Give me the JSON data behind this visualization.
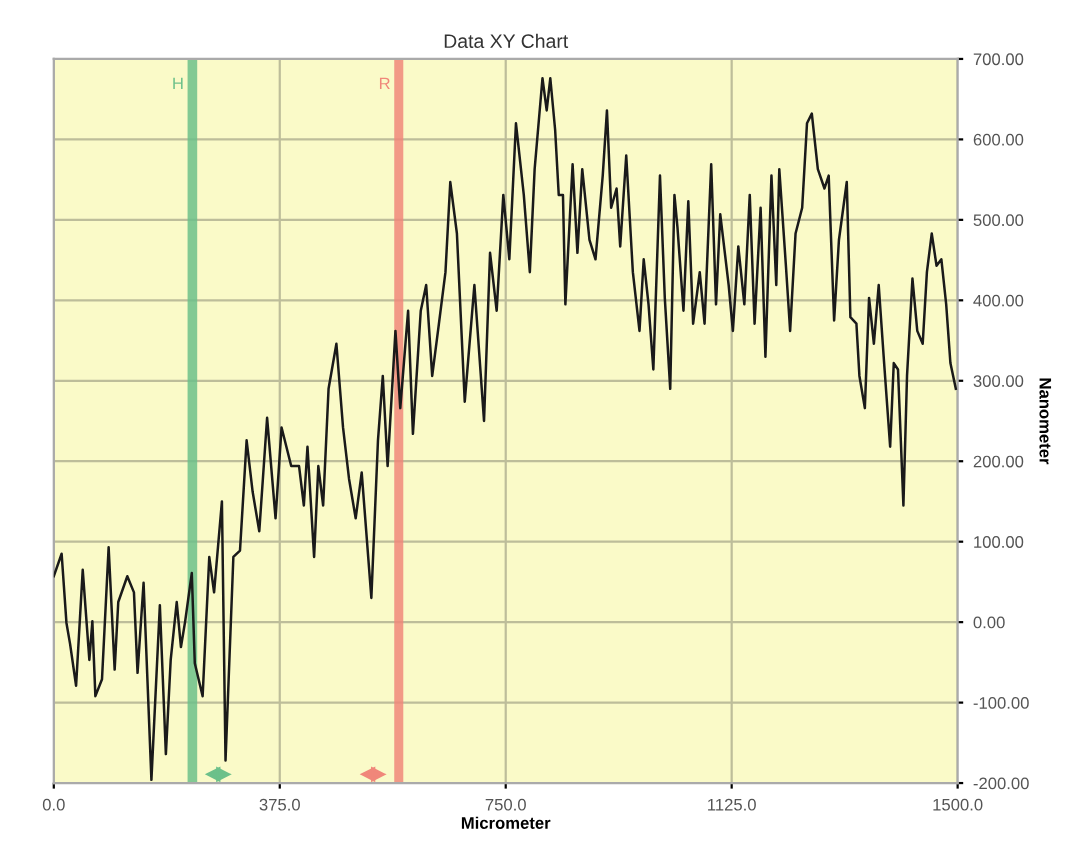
{
  "chart_data": {
    "type": "line",
    "title": "Data XY Chart",
    "xlabel": "Micrometer",
    "ylabel": "Nanometer",
    "xlim": [
      0,
      1500
    ],
    "xticks": [
      {
        "value": 0,
        "label": "0.0"
      },
      {
        "value": 375,
        "label": "375.0"
      },
      {
        "value": 750,
        "label": "750.0"
      },
      {
        "value": 1125,
        "label": "1125.0"
      },
      {
        "value": 1500,
        "label": "1500.0"
      }
    ],
    "ylim": [
      -200,
      700
    ],
    "yticks": [
      {
        "value": -200,
        "label": "-200.00"
      },
      {
        "value": -100,
        "label": "-100.00"
      },
      {
        "value": 0,
        "label": "0.00"
      },
      {
        "value": 100,
        "label": "100.00"
      },
      {
        "value": 200,
        "label": "200.00"
      },
      {
        "value": 300,
        "label": "300.00"
      },
      {
        "value": 400,
        "label": "400.00"
      },
      {
        "value": 500,
        "label": "500.00"
      },
      {
        "value": 600,
        "label": "600.00"
      },
      {
        "value": 700,
        "label": "700.00"
      }
    ],
    "grid": true,
    "legend": false,
    "marker": "none",
    "line_style": "solid",
    "bands": [
      {
        "axis": "x",
        "from": 222,
        "to": 238,
        "label": "H",
        "color": "#6cc08a"
      },
      {
        "axis": "x",
        "from": 565,
        "to": 580,
        "label": "R",
        "color": "#f0877a"
      }
    ],
    "series": [
      {
        "color": "#1a1a1a",
        "x": [
          0,
          13,
          21,
          27,
          37,
          48,
          59,
          64,
          69,
          80,
          91,
          101,
          107,
          122,
          133,
          139,
          149,
          162,
          176,
          186,
          194,
          204,
          211,
          218,
          229,
          234,
          247,
          258,
          266,
          279,
          285,
          298,
          309,
          320,
          330,
          341,
          354,
          368,
          378,
          394,
          407,
          415,
          421,
          432,
          439,
          447,
          456,
          469,
          480,
          490,
          501,
          511,
          527,
          538,
          546,
          554,
          567,
          575,
          588,
          596,
          609,
          618,
          628,
          639,
          650,
          658,
          669,
          682,
          698,
          714,
          724,
          735,
          746,
          756,
          767,
          780,
          790,
          798,
          811,
          818,
          824,
          832,
          838,
          845,
          849,
          861,
          869,
          877,
          889,
          899,
          911,
          918,
          925,
          934,
          940,
          950,
          961,
          972,
          979,
          987,
          995,
          1006,
          1014,
          1023,
          1030,
          1035,
          1045,
          1053,
          1061,
          1072,
          1080,
          1091,
          1099,
          1106,
          1120,
          1127,
          1136,
          1146,
          1155,
          1163,
          1173,
          1181,
          1191,
          1199,
          1204,
          1215,
          1222,
          1231,
          1242,
          1250,
          1258,
          1268,
          1279,
          1286,
          1295,
          1303,
          1316,
          1322,
          1332,
          1337,
          1346,
          1353,
          1361,
          1369,
          1378,
          1388,
          1394,
          1401,
          1410,
          1416,
          1425,
          1433,
          1442,
          1449,
          1457,
          1465,
          1473,
          1481,
          1488,
          1497
        ],
        "values": [
          57,
          85,
          -1,
          -27,
          -79,
          65,
          -47,
          1,
          -92,
          -71,
          93,
          -59,
          25,
          57,
          37,
          -63,
          49,
          -196,
          21,
          -164,
          -47,
          25,
          -31,
          1,
          61,
          -51,
          -92,
          81,
          37,
          150,
          -172,
          81,
          89,
          226,
          162,
          113,
          254,
          129,
          242,
          194,
          194,
          145,
          218,
          81,
          194,
          145,
          290,
          346,
          242,
          178,
          129,
          186,
          30,
          226,
          306,
          194,
          362,
          266,
          387,
          234,
          387,
          419,
          306,
          370,
          435,
          547,
          483,
          274,
          419,
          250,
          459,
          387,
          531,
          451,
          620,
          531,
          435,
          563,
          676,
          636,
          676,
          612,
          531,
          531,
          395,
          569,
          459,
          563,
          475,
          451,
          555,
          636,
          515,
          539,
          467,
          580,
          435,
          362,
          451,
          395,
          314,
          555,
          403,
          290,
          531,
          491,
          387,
          523,
          371,
          435,
          371,
          569,
          395,
          507,
          419,
          362,
          467,
          395,
          531,
          371,
          515,
          330,
          555,
          419,
          563,
          443,
          362,
          483,
          515,
          620,
          632,
          563,
          539,
          555,
          375,
          475,
          547,
          379,
          371,
          306,
          266,
          403,
          346,
          419,
          322,
          218,
          322,
          314,
          145,
          306,
          427,
          362,
          346,
          435,
          483,
          443,
          451,
          395,
          322,
          290
        ]
      }
    ]
  }
}
